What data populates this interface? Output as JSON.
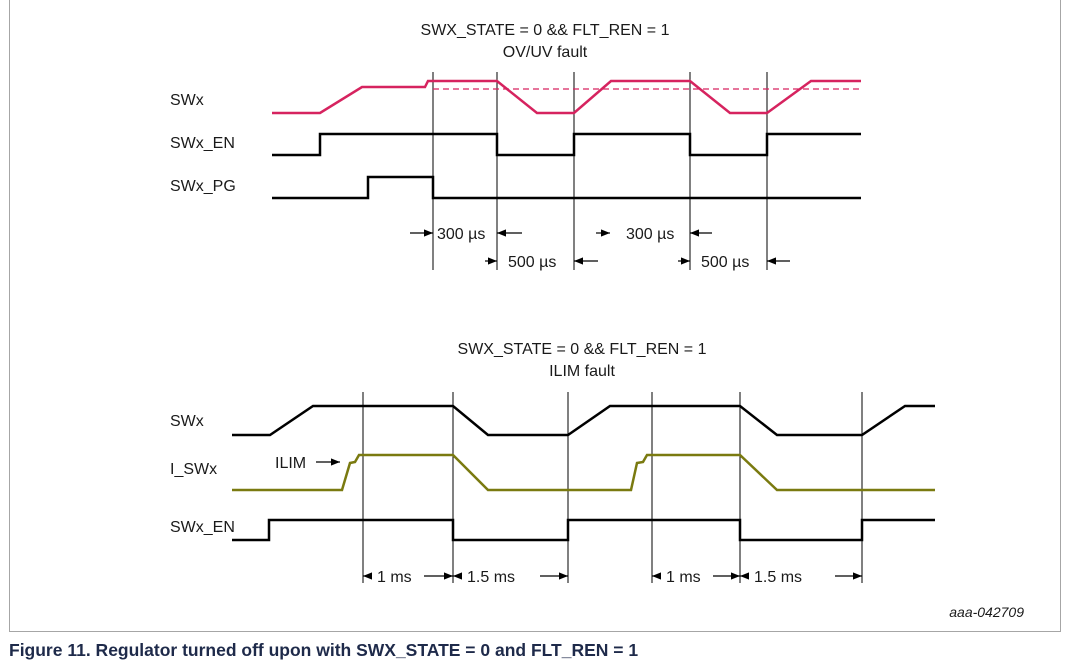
{
  "top_panel": {
    "title_line1": "SWX_STATE = 0 && FLT_REN = 1",
    "title_line2": "OV/UV fault",
    "signals": {
      "swx": "SWx",
      "swx_en": "SWx_EN",
      "swx_pg": "SWx_PG"
    },
    "timings": {
      "t1": "300 µs",
      "t2": "500 µs",
      "t3": "300 µs",
      "t4": "500 µs"
    }
  },
  "bottom_panel": {
    "title_line1": "SWX_STATE = 0 && FLT_REN = 1",
    "title_line2": "ILIM fault",
    "signals": {
      "swx": "SWx",
      "i_swx": "I_SWx",
      "swx_en": "SWx_EN"
    },
    "ilim_label": "ILIM",
    "timings": {
      "t1": "1 ms",
      "t2": "1.5 ms",
      "t3": "1 ms",
      "t4": "1.5 ms"
    }
  },
  "figure_id": "aaa-042709",
  "caption": "Figure 11.  Regulator turned off upon with SWX_STATE = 0 and FLT_REN = 1",
  "colors": {
    "swx_top": "#d6235f",
    "i_swx": "#7a7a10",
    "signal": "#000000"
  }
}
